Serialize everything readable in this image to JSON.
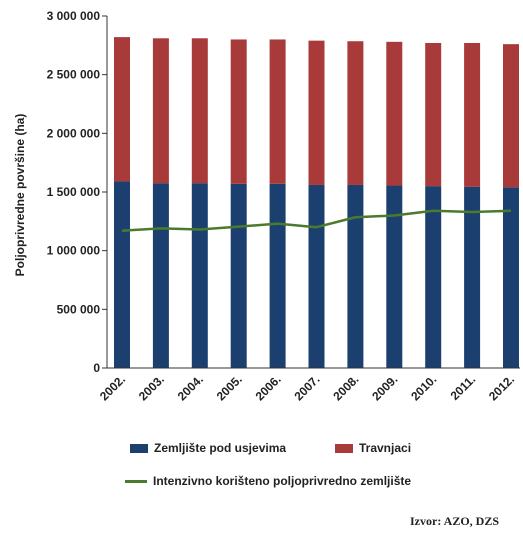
{
  "chart_data": {
    "type": "bar",
    "stacked": true,
    "ylabel": "Poljoprivredne površine (ha)",
    "ylim": [
      0,
      3000000
    ],
    "y_ticks": [
      0,
      500000,
      1000000,
      1500000,
      2000000,
      2500000,
      3000000
    ],
    "y_tick_labels": [
      "0",
      "500 000",
      "1 000 000",
      "1 500 000",
      "2 000 000",
      "2 500 000",
      "3 000 000"
    ],
    "categories": [
      "2002.",
      "2003.",
      "2004.",
      "2005.",
      "2006.",
      "2007.",
      "2008.",
      "2009.",
      "2010.",
      "2011.",
      "2012."
    ],
    "series": [
      {
        "name": "Zemljište pod usjevima",
        "color": "#1b3f6e",
        "values": [
          1590000,
          1575000,
          1575000,
          1570000,
          1570000,
          1560000,
          1560000,
          1555000,
          1550000,
          1545000,
          1540000
        ]
      },
      {
        "name": "Travnjaci",
        "color": "#a83a3a",
        "values": [
          1230000,
          1235000,
          1235000,
          1230000,
          1230000,
          1230000,
          1225000,
          1225000,
          1220000,
          1225000,
          1220000
        ]
      }
    ],
    "line_series": {
      "name": "Intenzivno korišteno poljoprivredno zemljište",
      "color": "#4b7a2f",
      "values": [
        1170000,
        1190000,
        1180000,
        1205000,
        1230000,
        1200000,
        1285000,
        1300000,
        1340000,
        1330000,
        1340000
      ]
    },
    "legend_position": "bottom",
    "grid": false
  },
  "source": "Izvor: AZO, DZS"
}
